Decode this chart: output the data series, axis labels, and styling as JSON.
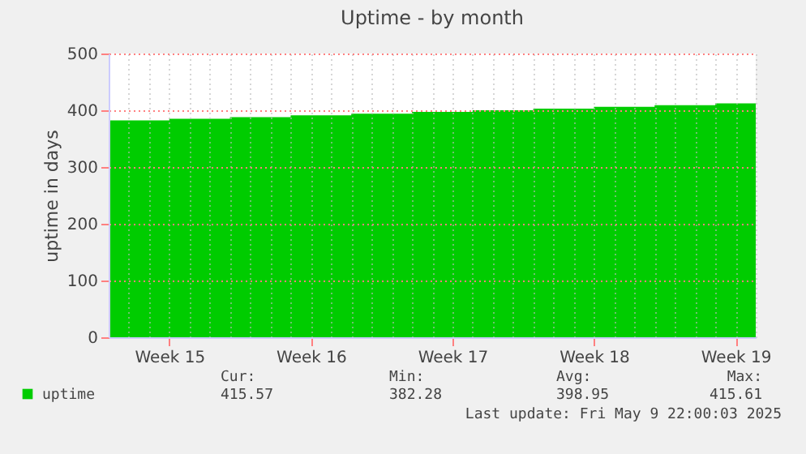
{
  "chart_data": {
    "type": "area",
    "title": "Uptime - by month",
    "ylabel": "uptime in days",
    "categories": [
      null,
      null,
      null,
      "Week 15",
      null,
      null,
      null,
      null,
      null,
      null,
      "Week 16",
      null,
      null,
      null,
      null,
      null,
      null,
      "Week 17",
      null,
      null,
      null,
      null,
      null,
      null,
      "Week 18",
      null,
      null,
      null,
      null,
      null,
      null,
      "Week 19",
      null
    ],
    "series": [
      {
        "name": "uptime",
        "color": "#00cc00",
        "values": [
          382,
          382,
          382,
          385,
          385,
          385,
          388,
          388,
          388,
          391,
          391,
          391,
          394,
          394,
          394,
          397,
          397,
          397,
          400,
          400,
          400,
          403,
          403,
          403,
          406,
          406,
          406,
          409,
          409,
          409,
          412,
          412,
          416
        ]
      }
    ],
    "ylim": [
      0,
      500
    ],
    "yticks": [
      0,
      100,
      200,
      300,
      400,
      500
    ],
    "grid": true,
    "legend": "bottom left",
    "annotations": [
      "Cur:",
      "Min:",
      "Avg:",
      "Max:",
      "415.57",
      "382.28",
      "398.95",
      "415.61",
      "Last update: Fri May  9 22:00:03 2025"
    ]
  }
}
